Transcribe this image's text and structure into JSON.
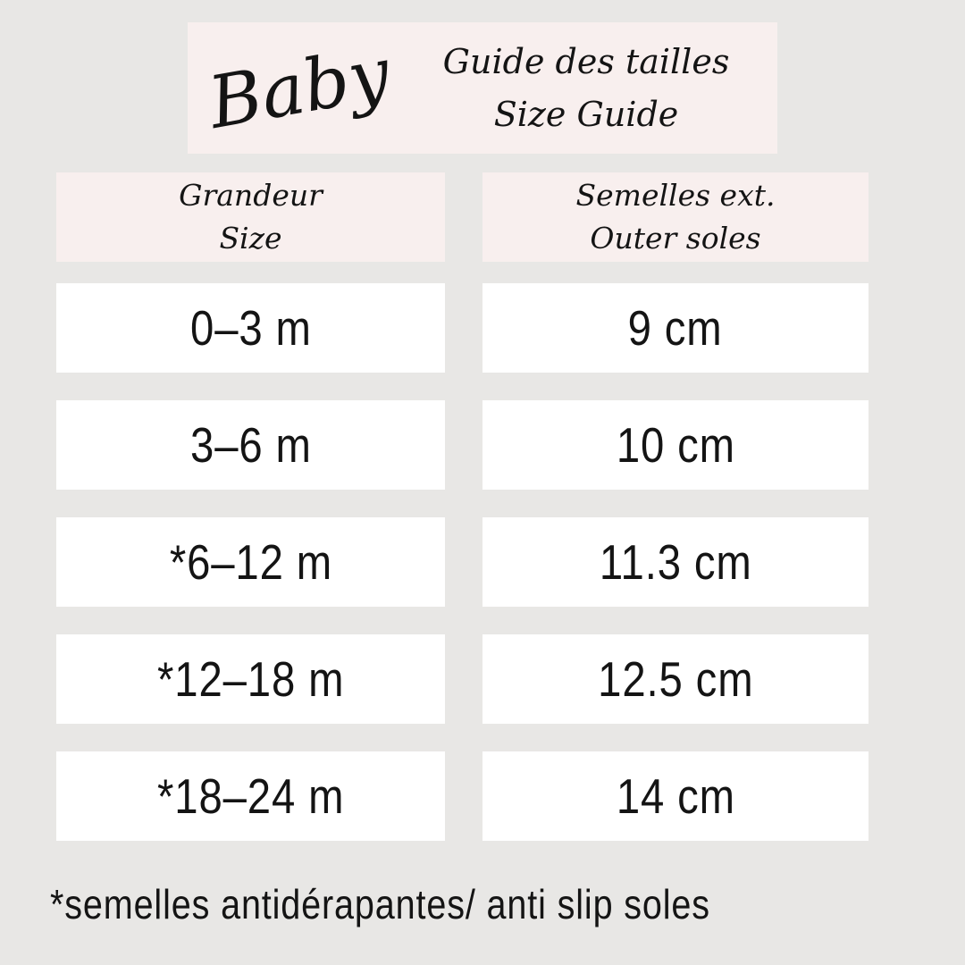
{
  "colors": {
    "background": "#e8e7e5",
    "accent_pink": "#f8efee",
    "cell_white": "#ffffff",
    "text": "#141414"
  },
  "banner": {
    "brand": "Baby",
    "title_line1": "Guide des tailles",
    "title_line2": "Size Guide"
  },
  "table": {
    "columns": [
      {
        "header_line1": "Grandeur",
        "header_line2": "Size"
      },
      {
        "header_line1": "Semelles ext.",
        "header_line2": "Outer soles"
      }
    ],
    "rows": [
      {
        "size": "0–3 m",
        "sole": "9 cm"
      },
      {
        "size": "3–6 m",
        "sole": "10 cm"
      },
      {
        "size": "*6–12 m",
        "sole": "11.3 cm"
      },
      {
        "size": "*12–18 m",
        "sole": "12.5 cm"
      },
      {
        "size": "*18–24 m",
        "sole": "14 cm"
      }
    ]
  },
  "footnote": "*semelles antidérapantes/ anti slip soles",
  "chart_data": {
    "type": "table",
    "title": "Baby — Guide des tailles / Size Guide",
    "columns": [
      "Grandeur / Size",
      "Semelles ext. / Outer soles"
    ],
    "rows": [
      [
        "0–3 m",
        "9 cm"
      ],
      [
        "3–6 m",
        "10 cm"
      ],
      [
        "*6–12 m",
        "11.3 cm"
      ],
      [
        "*12–18 m",
        "12.5 cm"
      ],
      [
        "*18–24 m",
        "14 cm"
      ]
    ],
    "sole_lengths_cm": [
      9,
      10,
      11.3,
      12.5,
      14
    ],
    "footnote": "*semelles antidérapantes/ anti slip soles"
  }
}
